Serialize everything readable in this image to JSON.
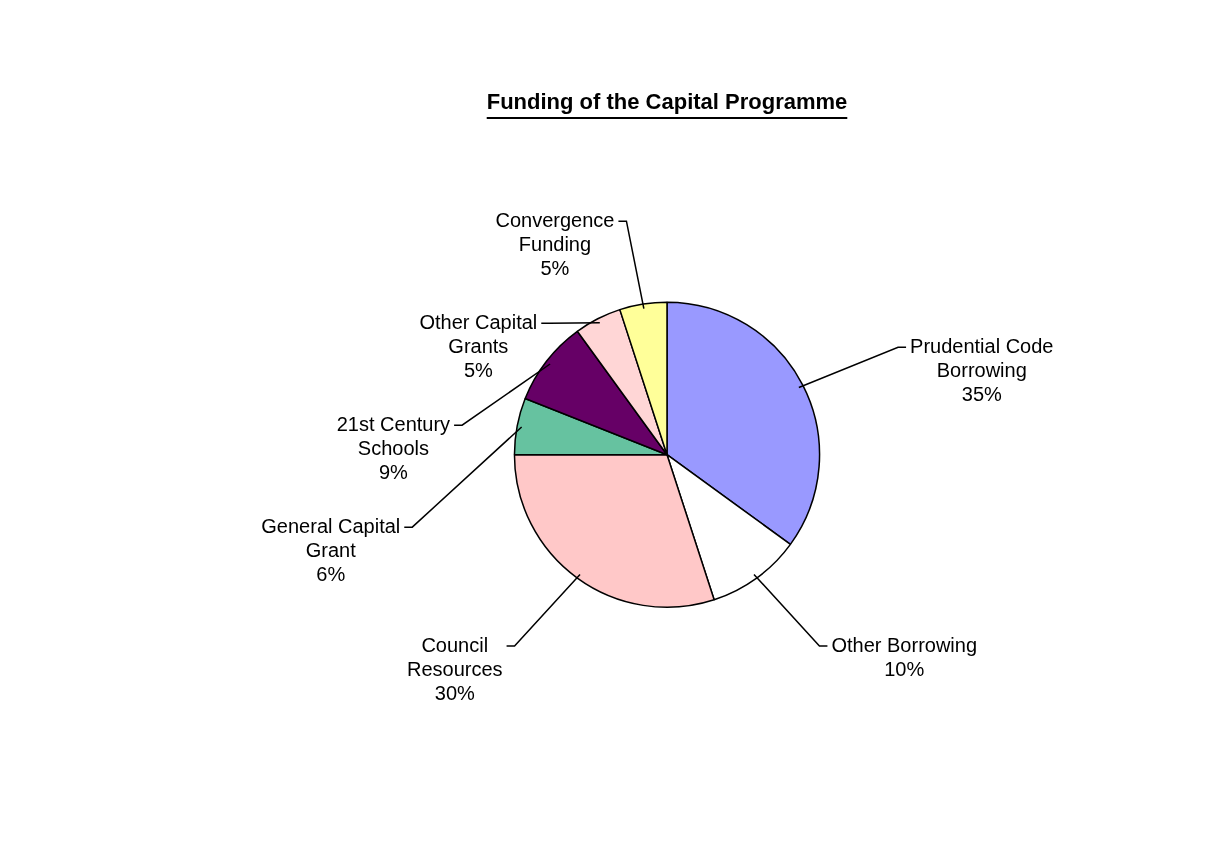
{
  "chart_data": {
    "type": "pie",
    "title": "Funding of the Capital Programme",
    "categories": [
      "Prudential Code Borrowing",
      "Other Borrowing",
      "Council Resources",
      "General Capital Grant",
      "21st Century Schools",
      "Other Capital Grants",
      "Convergence Funding"
    ],
    "values": [
      35,
      10,
      30,
      6,
      9,
      5,
      5
    ],
    "colors": [
      "#9999ff",
      "#ffffff",
      "#ffc8c8",
      "#66c2a0",
      "#660066",
      "#ffd6d6",
      "#ffff99"
    ],
    "value_labels": [
      "35%",
      "10%",
      "30%",
      "6%",
      "9%",
      "5%",
      "5%"
    ],
    "legend": false
  }
}
